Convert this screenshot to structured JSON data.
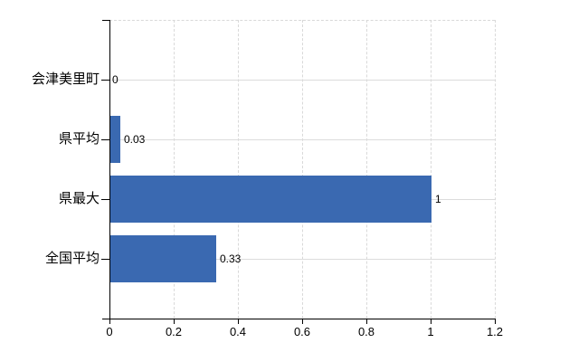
{
  "chart_data": {
    "type": "bar",
    "orientation": "horizontal",
    "title": "",
    "categories": [
      "会津美里町",
      "県平均",
      "県最大",
      "全国平均"
    ],
    "values": [
      0,
      0.03,
      1,
      0.33
    ],
    "value_labels": [
      "0",
      "0.03",
      "1",
      "0.33"
    ],
    "x_ticks": [
      0,
      0.2,
      0.4,
      0.6,
      0.8,
      1.0,
      1.2
    ],
    "x_tick_labels": [
      "0",
      "0.2",
      "0.4",
      "0.6",
      "0.8",
      "1",
      "1.2"
    ],
    "xlim": [
      0,
      1.2
    ],
    "grid": true,
    "legend": "none",
    "colors": {
      "bar": "#3A69B1",
      "grid": "#d9d9d9",
      "axis": "#000000",
      "text": "#000000",
      "background": "#ffffff"
    }
  }
}
